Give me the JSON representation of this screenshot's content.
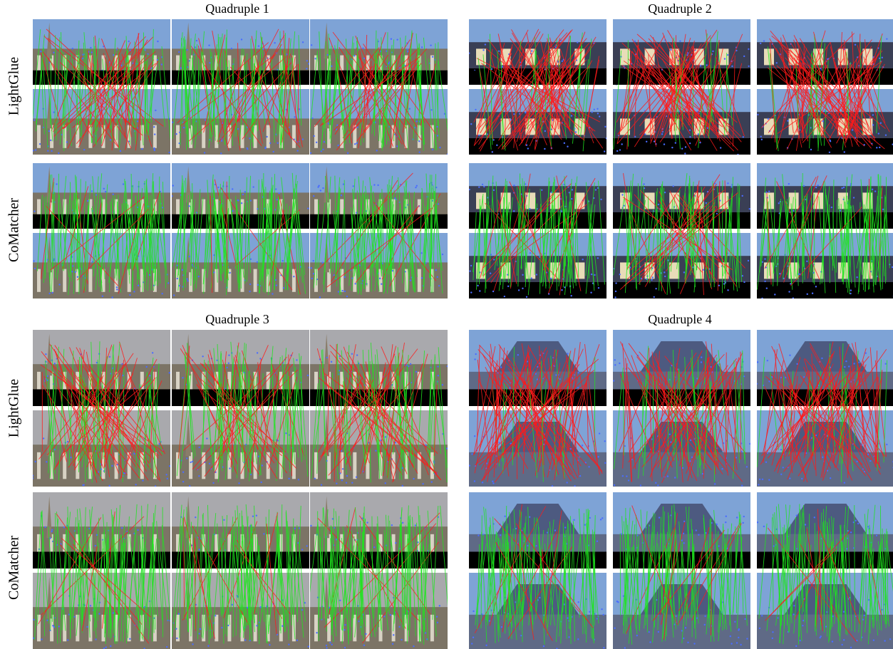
{
  "figure": {
    "quadruples": [
      {
        "title": "Quadruple 1",
        "scene": "square",
        "rows": [
          {
            "label": "LightGlue",
            "panels": [
              {
                "inliers": 0.62
              },
              {
                "inliers": 0.7
              },
              {
                "inliers": 0.75
              }
            ]
          },
          {
            "label": "CoMatcher",
            "panels": [
              {
                "inliers": 0.92
              },
              {
                "inliers": 0.93
              },
              {
                "inliers": 0.93
              }
            ]
          }
        ]
      },
      {
        "title": "Quadruple 2",
        "scene": "gate",
        "rows": [
          {
            "label": "LightGlue",
            "panels": [
              {
                "inliers": 0.2
              },
              {
                "inliers": 0.2
              },
              {
                "inliers": 0.18
              }
            ]
          },
          {
            "label": "CoMatcher",
            "panels": [
              {
                "inliers": 0.85
              },
              {
                "inliers": 0.7
              },
              {
                "inliers": 0.85
              }
            ]
          }
        ]
      },
      {
        "title": "Quadruple 3",
        "scene": "obelisk",
        "rows": [
          {
            "label": "LightGlue",
            "panels": [
              {
                "inliers": 0.45
              },
              {
                "inliers": 0.6
              },
              {
                "inliers": 0.55
              }
            ]
          },
          {
            "label": "CoMatcher",
            "panels": [
              {
                "inliers": 0.9
              },
              {
                "inliers": 0.88
              },
              {
                "inliers": 0.9
              }
            ]
          }
        ]
      },
      {
        "title": "Quadruple 4",
        "scene": "quadriga",
        "rows": [
          {
            "label": "LightGlue",
            "panels": [
              {
                "inliers": 0.15
              },
              {
                "inliers": 0.35
              },
              {
                "inliers": 0.2
              }
            ]
          },
          {
            "label": "CoMatcher",
            "panels": [
              {
                "inliers": 0.85
              },
              {
                "inliers": 0.9
              },
              {
                "inliers": 0.9
              }
            ]
          }
        ]
      }
    ],
    "colors": {
      "inlier": "#1fe51f",
      "outlier": "#ff1a1a",
      "keypoint": "#4a6cff",
      "sky_blue": "#7ea3d6",
      "sky_grey": "#a9a9ad",
      "building": "#7c7466",
      "black": "#000000"
    }
  }
}
